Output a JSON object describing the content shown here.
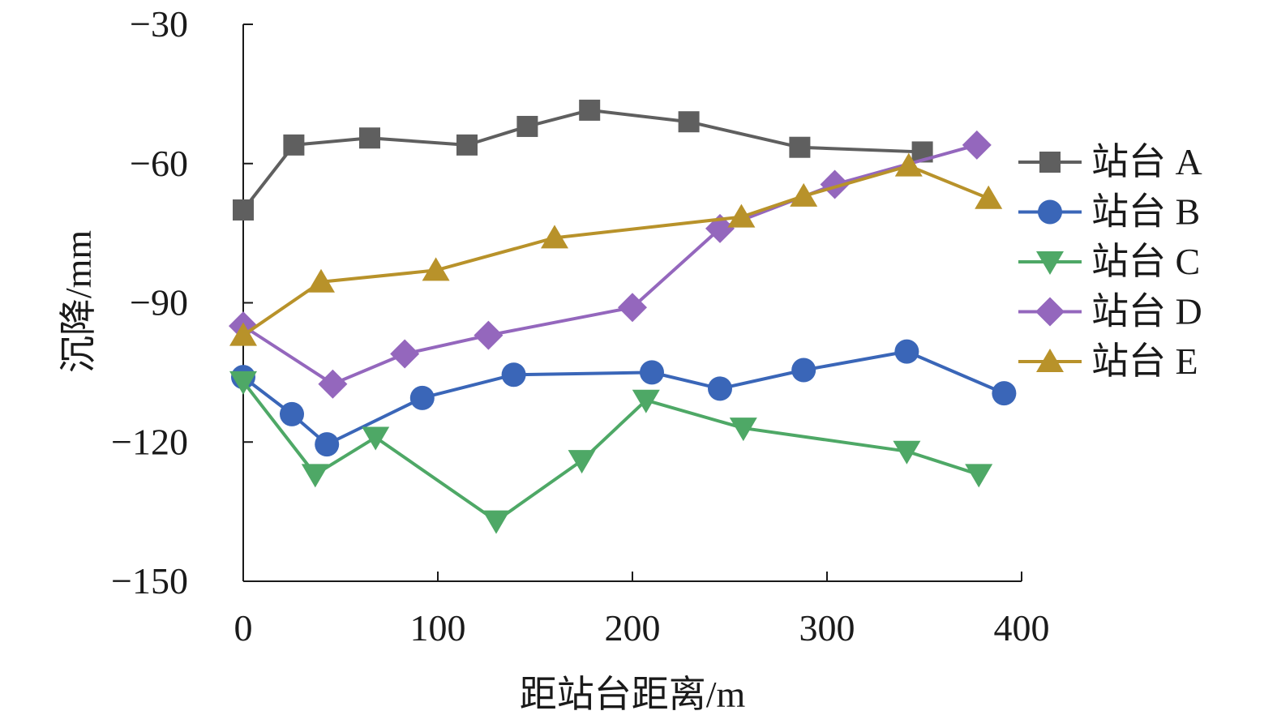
{
  "chart_data": {
    "type": "line",
    "xlabel": "距站台距离/m",
    "ylabel": "沉降/mm",
    "xlim": [
      0,
      400
    ],
    "ylim": [
      -150,
      -30
    ],
    "xticks": [
      0,
      100,
      200,
      300,
      400
    ],
    "yticks": [
      -150,
      -120,
      -90,
      -60,
      -30
    ],
    "xtick_labels": [
      "0",
      "100",
      "200",
      "300",
      "400"
    ],
    "ytick_labels": [
      "−150",
      "−120",
      "−90",
      "−60",
      "−30"
    ],
    "grid": false,
    "legend_position": "right",
    "series": [
      {
        "name": "站台 A",
        "color": "#5f5f5f",
        "marker": "square",
        "x": [
          0,
          26,
          65,
          115,
          146,
          178,
          229,
          286,
          349
        ],
        "y": [
          -70,
          -56,
          -54.5,
          -56,
          -52,
          -48.5,
          -51,
          -56.5,
          -57.5
        ]
      },
      {
        "name": "站台 B",
        "color": "#3a66b8",
        "marker": "circle",
        "x": [
          0,
          25,
          43,
          92,
          139,
          210,
          245,
          288,
          341,
          391
        ],
        "y": [
          -106,
          -114,
          -120.5,
          -110.5,
          -105.5,
          -105,
          -108.5,
          -104.5,
          -100.5,
          -109.5
        ]
      },
      {
        "name": "站台 C",
        "color": "#4ea866",
        "marker": "triangle-down",
        "x": [
          0,
          37,
          68,
          130,
          174,
          207,
          257,
          341,
          378
        ],
        "y": [
          -107,
          -127,
          -119,
          -137,
          -124,
          -111,
          -117,
          -122,
          -127
        ]
      },
      {
        "name": "站台 D",
        "color": "#9467bd",
        "marker": "diamond",
        "x": [
          0,
          46,
          83,
          126,
          200,
          245,
          304,
          377
        ],
        "y": [
          -95,
          -107.5,
          -101,
          -97,
          -91,
          -74,
          -64.5,
          -56
        ]
      },
      {
        "name": "站台 E",
        "color": "#b8922a",
        "marker": "triangle-up",
        "x": [
          0,
          40,
          99,
          160,
          256,
          288,
          342,
          383
        ],
        "y": [
          -97,
          -85.5,
          -83,
          -76,
          -71.5,
          -67,
          -60.5,
          -67.5
        ]
      }
    ]
  }
}
